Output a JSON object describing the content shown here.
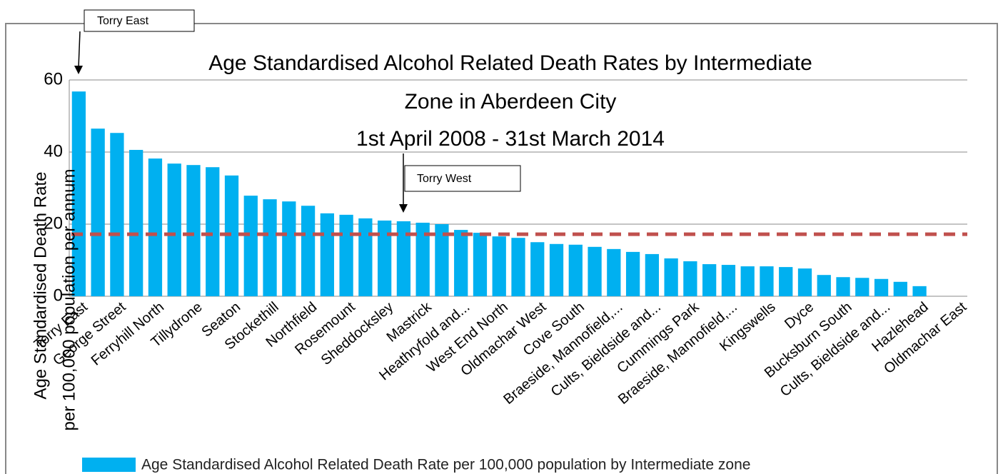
{
  "chart_data": {
    "type": "bar",
    "title": [
      "Age Standardised Alcohol Related Death Rates by Intermediate",
      "Zone in Aberdeen City",
      "1st April 2008 - 31st March  2014"
    ],
    "y_axis_label": [
      "Age Standardised Death Rate",
      "per 100,000 population per annum"
    ],
    "categories": [
      "Torry East",
      null,
      "George Street",
      null,
      "Ferryhill North",
      null,
      "Tillydrone",
      null,
      "Seaton",
      null,
      "Stockethill",
      null,
      "Northfield",
      null,
      "Rosemount",
      null,
      "Sheddocksley",
      null,
      "Mastrick",
      null,
      "Heathryfold and...",
      null,
      "West End North",
      null,
      "Oldmachar West",
      null,
      "Cove South",
      null,
      "Braeside, Mannofield,...",
      null,
      "Cults, Bieldside and...",
      null,
      "Cummings Park",
      null,
      "Braeside, Mannofield,...",
      null,
      "Kingswells",
      null,
      "Dyce",
      null,
      "Bucksburn South",
      null,
      "Cults, Bieldside and...",
      null,
      "Hazlehead",
      null,
      "Oldmachar East"
    ],
    "series": [
      {
        "name": "Age Standardised Alcohol Related Death Rate per 100,000 population by Intermediate zone",
        "color": "#00b0f0",
        "values": [
          56.8,
          46.5,
          45.3,
          40.6,
          38.2,
          36.8,
          36.4,
          35.8,
          33.5,
          27.9,
          26.9,
          26.3,
          25.1,
          23.0,
          22.6,
          21.6,
          21.0,
          20.8,
          20.4,
          20.0,
          18.4,
          17.6,
          16.6,
          16.2,
          15.0,
          14.5,
          14.3,
          13.7,
          13.1,
          12.3,
          11.7,
          10.5,
          9.7,
          8.9,
          8.7,
          8.3,
          8.3,
          8.1,
          7.7,
          5.9,
          5.3,
          5.1,
          4.8,
          4.0,
          2.8,
          0,
          0
        ]
      }
    ],
    "reference_line": {
      "value": 17.2,
      "color": "#c0504d"
    },
    "ylim": [
      0,
      60
    ],
    "yticks": [
      0,
      20,
      40,
      60
    ],
    "grid": true,
    "annotations": [
      "Torry East",
      "Torry West"
    ]
  }
}
